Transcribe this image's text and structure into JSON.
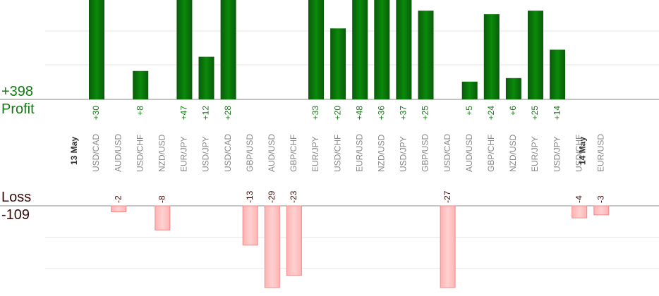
{
  "summary": {
    "profit_total": "+398",
    "profit_label": "Profit",
    "loss_label": "Loss",
    "loss_total": "-109"
  },
  "colors": {
    "profit_bar_dark": "#0b5a0b",
    "profit_bar_light": "#0a8a0a",
    "profit_text": "#137813",
    "loss_bar_dark": "#ffb3b3",
    "loss_bar_light": "#ffd0d0",
    "loss_border": "#f08a8a",
    "loss_text": "#3a0a0a",
    "axis_line": "#8a8a8a",
    "grid_line": "#e6e6e6",
    "category_text": "#888888",
    "date_text": "#333333"
  },
  "chart_data": {
    "type": "bar",
    "dates": [
      "13 May",
      "14 May"
    ],
    "categories": [
      "USD/CAD",
      "AUD/USD",
      "USD/CHF",
      "NZD/USD",
      "EUR/JPY",
      "USD/JPY",
      "USD/CAD",
      "GBP/USD",
      "AUD/USD",
      "GBP/CHF",
      "EUR/JPY",
      "USD/CHF",
      "EUR/USD",
      "NZD/USD",
      "USD/JPY",
      "GBP/USD",
      "USD/CAD",
      "AUD/USD",
      "GBP/CHF",
      "NZD/USD",
      "EUR/JPY",
      "USD/JPY",
      "USD/CHF",
      "EUR/USD"
    ],
    "date_markers": [
      {
        "label": "13 May",
        "before_index": 0
      },
      {
        "label": "14 May",
        "before_index": 23
      }
    ],
    "series": [
      {
        "values": [
          30,
          null,
          8,
          null,
          47,
          12,
          28,
          null,
          null,
          null,
          33,
          20,
          48,
          36,
          37,
          25,
          null,
          5,
          24,
          6,
          25,
          14,
          null,
          null
        ],
        "labels": [
          "+30",
          "",
          "+8",
          "",
          "+47",
          "+12",
          "+28",
          "",
          "",
          "",
          "+33",
          "+20",
          "+48",
          "+36",
          "+37",
          "+25",
          "",
          "+5",
          "+24",
          "+6",
          "+25",
          "+14",
          "",
          ""
        ]
      },
      {
        "values": [
          null,
          -2,
          null,
          -8,
          null,
          null,
          null,
          -13,
          -29,
          -23,
          null,
          null,
          null,
          null,
          null,
          null,
          -27,
          null,
          null,
          null,
          null,
          null,
          -4,
          -3
        ],
        "labels": [
          "",
          "-2",
          "",
          "-8",
          "",
          "",
          "",
          "-13",
          "-29",
          "-23",
          "",
          "",
          "",
          "",
          "",
          "",
          "-27",
          "",
          "",
          "",
          "",
          "",
          "-4",
          "-3"
        ]
      }
    ],
    "profit_ylim": [
      0,
      28
    ],
    "loss_ylim": [
      -27,
      0
    ],
    "grid": true
  }
}
